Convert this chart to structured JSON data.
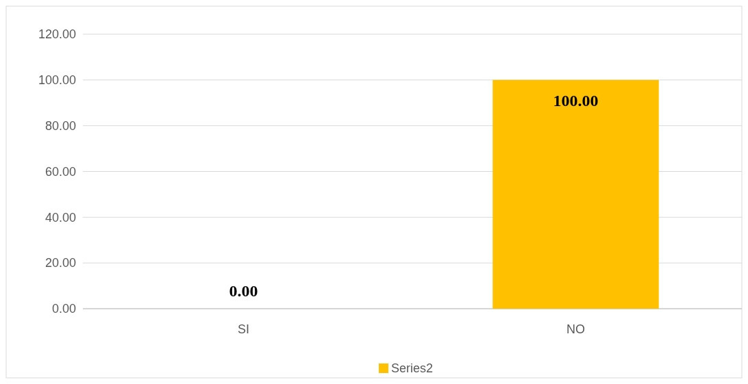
{
  "chart_data": {
    "type": "bar",
    "categories": [
      "SI",
      "NO"
    ],
    "series": [
      {
        "name": "Series2",
        "color": "#ffc000",
        "values": [
          0,
          100
        ]
      }
    ],
    "value_labels": [
      "0.00",
      "100.00"
    ],
    "ylim": [
      0,
      120
    ],
    "yticks": [
      {
        "value": 0,
        "label": "0.00"
      },
      {
        "value": 20,
        "label": "20.00"
      },
      {
        "value": 40,
        "label": "40.00"
      },
      {
        "value": 60,
        "label": "60.00"
      },
      {
        "value": 80,
        "label": "80.00"
      },
      {
        "value": 100,
        "label": "100.00"
      },
      {
        "value": 120,
        "label": "120.00"
      }
    ],
    "grid": "y",
    "legend": "bottom"
  }
}
